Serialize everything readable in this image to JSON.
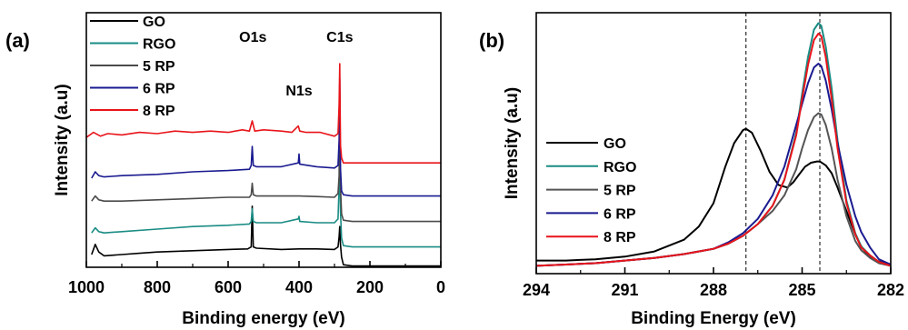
{
  "chart_data": [
    {
      "type": "line",
      "panel_label": "(a)",
      "xlabel": "Binding energy (eV)",
      "ylabel": "Intensity (a.u)",
      "xlim": [
        1000,
        0
      ],
      "ylim": [
        0,
        10
      ],
      "x_reversed": true,
      "xticks": [
        1000,
        800,
        600,
        400,
        200,
        0
      ],
      "y_ticks_shown": false,
      "grid": false,
      "legend": {
        "placement": "top-left"
      },
      "annotations": [
        {
          "text": "O1s",
          "x": 530,
          "y": 8.85
        },
        {
          "text": "N1s",
          "x": 400,
          "y": 6.75
        },
        {
          "text": "C1s",
          "x": 285,
          "y": 8.85
        }
      ],
      "series": [
        {
          "name": "GO",
          "color": "#000000",
          "x": [
            985,
            975,
            965,
            950,
            900,
            850,
            800,
            700,
            600,
            545,
            535,
            532,
            529,
            520,
            450,
            400,
            350,
            300,
            290,
            287,
            285,
            283,
            280,
            275,
            250,
            200,
            100,
            0
          ],
          "y": [
            0.5,
            0.9,
            0.6,
            0.45,
            0.5,
            0.55,
            0.6,
            0.65,
            0.7,
            0.72,
            0.8,
            2.4,
            0.8,
            0.75,
            0.7,
            0.72,
            0.72,
            0.7,
            0.8,
            1.2,
            1.6,
            0.9,
            0.4,
            0.1,
            0.05,
            0.05,
            0.05,
            0.05
          ]
        },
        {
          "name": "RGO",
          "color": "#1a8c84",
          "x": [
            985,
            975,
            965,
            950,
            900,
            800,
            700,
            600,
            540,
            535,
            532,
            529,
            520,
            450,
            402,
            400,
            398,
            350,
            300,
            290,
            287,
            285,
            283,
            280,
            275,
            250,
            200,
            100,
            0
          ],
          "y": [
            1.35,
            1.55,
            1.4,
            1.35,
            1.4,
            1.5,
            1.6,
            1.65,
            1.7,
            1.8,
            2.3,
            1.8,
            1.75,
            1.75,
            1.9,
            2.0,
            1.8,
            1.75,
            1.75,
            1.9,
            3.2,
            4.2,
            2.2,
            1.15,
            0.85,
            0.8,
            0.8,
            0.8,
            0.8
          ]
        },
        {
          "name": "5 RP",
          "color": "#4a4a4a",
          "x": [
            985,
            975,
            965,
            950,
            900,
            800,
            700,
            600,
            540,
            535,
            532,
            529,
            520,
            450,
            400,
            350,
            300,
            290,
            287,
            285,
            283,
            280,
            275,
            250,
            200,
            100,
            0
          ],
          "y": [
            2.6,
            2.8,
            2.65,
            2.6,
            2.6,
            2.65,
            2.7,
            2.75,
            2.75,
            2.85,
            3.3,
            2.85,
            2.8,
            2.8,
            2.8,
            2.78,
            2.75,
            2.9,
            3.6,
            6.4,
            3.2,
            2.1,
            1.85,
            1.8,
            1.8,
            1.8,
            1.8
          ]
        },
        {
          "name": "6 RP",
          "color": "#1a1a90",
          "x": [
            985,
            975,
            965,
            950,
            900,
            800,
            700,
            600,
            540,
            535,
            532,
            529,
            520,
            450,
            402,
            400,
            398,
            350,
            300,
            290,
            287,
            285,
            283,
            280,
            275,
            250,
            200,
            100,
            0
          ],
          "y": [
            3.5,
            3.75,
            3.6,
            3.55,
            3.6,
            3.65,
            3.75,
            3.8,
            3.85,
            4.0,
            4.75,
            4.0,
            3.95,
            3.95,
            4.1,
            4.45,
            4.05,
            3.95,
            3.9,
            4.0,
            5.0,
            7.4,
            3.9,
            3.0,
            2.85,
            2.8,
            2.8,
            2.8,
            2.8
          ]
        },
        {
          "name": "8 RP",
          "color": "#e8141a",
          "x": [
            1000,
            980,
            960,
            940,
            900,
            850,
            800,
            750,
            700,
            650,
            600,
            560,
            540,
            532,
            525,
            500,
            450,
            420,
            402,
            398,
            380,
            340,
            300,
            290,
            287,
            285,
            283,
            280,
            275,
            250,
            200,
            100,
            0
          ],
          "y": [
            5.1,
            5.3,
            5.15,
            5.25,
            5.2,
            5.3,
            5.25,
            5.35,
            5.3,
            5.35,
            5.3,
            5.4,
            5.35,
            5.75,
            5.35,
            5.4,
            5.35,
            5.3,
            5.55,
            5.35,
            5.3,
            5.3,
            5.15,
            5.25,
            6.4,
            8.0,
            4.8,
            4.3,
            4.1,
            4.1,
            4.1,
            4.1,
            4.1
          ]
        }
      ]
    },
    {
      "type": "line",
      "panel_label": "(b)",
      "xlabel": "Binding Energy (eV)",
      "ylabel": "Intensity (a.u)",
      "xlim": [
        294,
        282
      ],
      "ylim": [
        0,
        10
      ],
      "x_reversed": true,
      "xticks": [
        294,
        291,
        288,
        285,
        282
      ],
      "y_ticks_shown": false,
      "grid": false,
      "legend": {
        "placement": "middle-left"
      },
      "reference_lines_x": [
        286.9,
        284.4
      ],
      "series": [
        {
          "name": "GO",
          "color": "#000000",
          "x": [
            294,
            293,
            292,
            291,
            290,
            289,
            288.5,
            288,
            287.6,
            287.3,
            287.0,
            286.9,
            286.7,
            286.4,
            286.1,
            285.8,
            285.5,
            285.3,
            285.1,
            284.9,
            284.7,
            284.5,
            284.4,
            284.2,
            284.0,
            283.8,
            283.5,
            283.2,
            283.0,
            282.8,
            282.5,
            282.2,
            282
          ],
          "y": [
            0.5,
            0.5,
            0.55,
            0.65,
            0.85,
            1.3,
            1.8,
            2.7,
            4.1,
            5.0,
            5.5,
            5.55,
            5.4,
            4.7,
            3.9,
            3.4,
            3.3,
            3.5,
            3.8,
            4.1,
            4.25,
            4.3,
            4.3,
            4.15,
            3.85,
            3.3,
            2.4,
            1.5,
            1.05,
            0.75,
            0.5,
            0.4,
            0.35
          ]
        },
        {
          "name": "RGO",
          "color": "#1a8c84",
          "x": [
            294,
            293,
            292,
            291,
            290,
            289,
            288,
            287.5,
            287,
            286.5,
            286,
            285.6,
            285.2,
            285.0,
            284.8,
            284.6,
            284.45,
            284.35,
            284.2,
            284.0,
            283.8,
            283.5,
            283.2,
            283.0,
            282.7,
            282.4,
            282
          ],
          "y": [
            0.3,
            0.35,
            0.4,
            0.5,
            0.6,
            0.75,
            0.95,
            1.15,
            1.45,
            1.9,
            2.6,
            3.6,
            5.4,
            6.9,
            8.3,
            9.35,
            9.6,
            9.5,
            8.7,
            7.1,
            5.1,
            2.8,
            1.55,
            1.05,
            0.7,
            0.45,
            0.3
          ]
        },
        {
          "name": "5 RP",
          "color": "#555555",
          "x": [
            294,
            293,
            292,
            291,
            290,
            289,
            288,
            287.5,
            287,
            286.5,
            286,
            285.6,
            285.2,
            285.0,
            284.8,
            284.6,
            284.45,
            284.35,
            284.2,
            284.0,
            283.8,
            283.5,
            283.2,
            283.0,
            282.7,
            282.4,
            282
          ],
          "y": [
            0.3,
            0.35,
            0.4,
            0.5,
            0.6,
            0.75,
            0.95,
            1.15,
            1.45,
            1.9,
            2.4,
            3.0,
            4.0,
            4.8,
            5.5,
            6.0,
            6.15,
            6.1,
            5.7,
            4.8,
            3.6,
            2.2,
            1.25,
            0.9,
            0.6,
            0.4,
            0.3
          ]
        },
        {
          "name": "6 RP",
          "color": "#1a1a90",
          "x": [
            294,
            293,
            292,
            291,
            290,
            289,
            288,
            287.5,
            287,
            286.5,
            286,
            285.6,
            285.2,
            285.0,
            284.8,
            284.6,
            284.45,
            284.35,
            284.2,
            284.0,
            283.8,
            283.5,
            283.2,
            283.0,
            282.7,
            282.4,
            282
          ],
          "y": [
            0.3,
            0.35,
            0.4,
            0.5,
            0.6,
            0.75,
            0.95,
            1.2,
            1.55,
            2.1,
            3.0,
            4.1,
            5.7,
            6.5,
            7.3,
            7.9,
            8.05,
            7.95,
            7.4,
            6.3,
            5.0,
            3.4,
            2.2,
            1.6,
            1.0,
            0.55,
            0.35
          ]
        },
        {
          "name": "8 RP",
          "color": "#e8141a",
          "x": [
            294,
            293,
            292,
            291,
            290,
            289,
            288,
            287.5,
            287,
            286.5,
            286,
            285.6,
            285.2,
            285.0,
            284.8,
            284.6,
            284.45,
            284.35,
            284.2,
            284.0,
            283.8,
            283.5,
            283.2,
            283.0,
            282.7,
            282.4,
            282
          ],
          "y": [
            0.3,
            0.35,
            0.4,
            0.5,
            0.6,
            0.75,
            0.95,
            1.15,
            1.45,
            1.9,
            2.6,
            3.6,
            5.3,
            6.7,
            8.0,
            8.95,
            9.2,
            9.1,
            8.3,
            6.7,
            4.8,
            2.7,
            1.5,
            1.0,
            0.7,
            0.45,
            0.3
          ]
        }
      ]
    }
  ]
}
